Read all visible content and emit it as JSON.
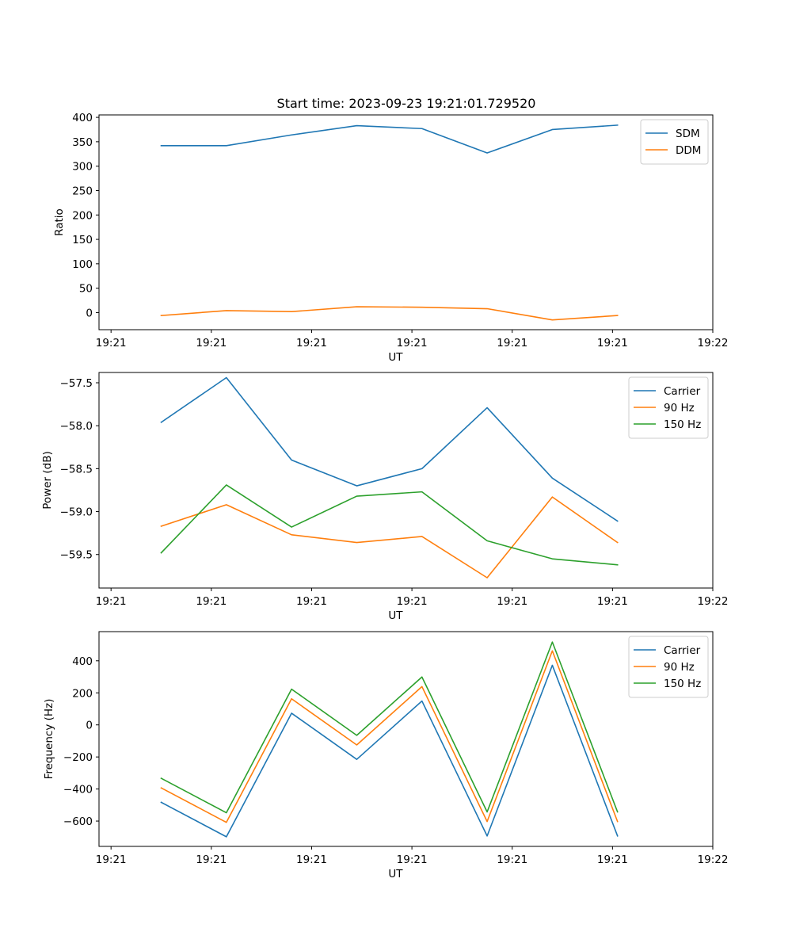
{
  "chart_data": [
    {
      "type": "line",
      "title": "Start time: 2023-09-23 19:21:01.729520",
      "xlabel": "UT",
      "ylabel": "Ratio",
      "x_tick_labels": [
        "19:21",
        "19:21",
        "19:21",
        "19:21",
        "19:21",
        "19:21",
        "19:22"
      ],
      "y_ticks": [
        0,
        50,
        100,
        150,
        200,
        250,
        300,
        350,
        400
      ],
      "ylim": [
        -35,
        405
      ],
      "x": [
        0.5,
        1.15,
        1.8,
        2.45,
        3.1,
        3.75,
        4.4,
        5.05
      ],
      "xlim": [
        -0.12,
        6.0
      ],
      "series": [
        {
          "name": "SDM",
          "color": "#1f77b4",
          "values": [
            342,
            342,
            364,
            383,
            377,
            327,
            375,
            384
          ]
        },
        {
          "name": "DDM",
          "color": "#ff7f0e",
          "values": [
            -6,
            4,
            2,
            12,
            11,
            8,
            -15,
            -6
          ]
        }
      ],
      "legend": "top-right"
    },
    {
      "type": "line",
      "title": "",
      "xlabel": "UT",
      "ylabel": "Power (dB)",
      "x_tick_labels": [
        "19:21",
        "19:21",
        "19:21",
        "19:21",
        "19:21",
        "19:21",
        "19:22"
      ],
      "y_ticks": [
        -59.5,
        -59.0,
        -58.5,
        -58.0,
        -57.5
      ],
      "y_tick_labels": [
        "−59.5",
        "−59.0",
        "−58.5",
        "−58.0",
        "−57.5"
      ],
      "ylim": [
        -59.89,
        -57.38
      ],
      "x": [
        0.5,
        1.15,
        1.8,
        2.45,
        3.1,
        3.75,
        4.4,
        5.05
      ],
      "xlim": [
        -0.12,
        6.0
      ],
      "series": [
        {
          "name": "Carrier",
          "color": "#1f77b4",
          "values": [
            -57.96,
            -57.44,
            -58.4,
            -58.7,
            -58.5,
            -57.79,
            -58.61,
            -59.11
          ]
        },
        {
          "name": "90 Hz",
          "color": "#ff7f0e",
          "values": [
            -59.17,
            -58.92,
            -59.27,
            -59.36,
            -59.29,
            -59.77,
            -58.83,
            -59.36
          ]
        },
        {
          "name": "150 Hz",
          "color": "#2ca02c",
          "values": [
            -59.48,
            -58.69,
            -59.18,
            -58.82,
            -58.77,
            -59.34,
            -59.55,
            -59.62
          ]
        }
      ],
      "legend": "top-right"
    },
    {
      "type": "line",
      "title": "",
      "xlabel": "UT",
      "ylabel": "Frequency (Hz)",
      "x_tick_labels": [
        "19:21",
        "19:21",
        "19:21",
        "19:21",
        "19:21",
        "19:21",
        "19:22"
      ],
      "y_ticks": [
        -600,
        -400,
        -200,
        0,
        200,
        400
      ],
      "y_tick_labels": [
        "−600",
        "−400",
        "−200",
        "0",
        "200",
        "400"
      ],
      "ylim": [
        -758,
        582
      ],
      "x": [
        0.5,
        1.15,
        1.8,
        2.45,
        3.1,
        3.75,
        4.4,
        5.05
      ],
      "xlim": [
        -0.12,
        6.0
      ],
      "series": [
        {
          "name": "Carrier",
          "color": "#1f77b4",
          "values": [
            -483,
            -698,
            73,
            -215,
            149,
            -693,
            372,
            -693
          ]
        },
        {
          "name": "90 Hz",
          "color": "#ff7f0e",
          "values": [
            -393,
            -608,
            163,
            -125,
            239,
            -603,
            462,
            -603
          ]
        },
        {
          "name": "150 Hz",
          "color": "#2ca02c",
          "values": [
            -333,
            -548,
            223,
            -65,
            299,
            -543,
            517,
            -543
          ]
        }
      ],
      "legend": "top-right"
    }
  ]
}
